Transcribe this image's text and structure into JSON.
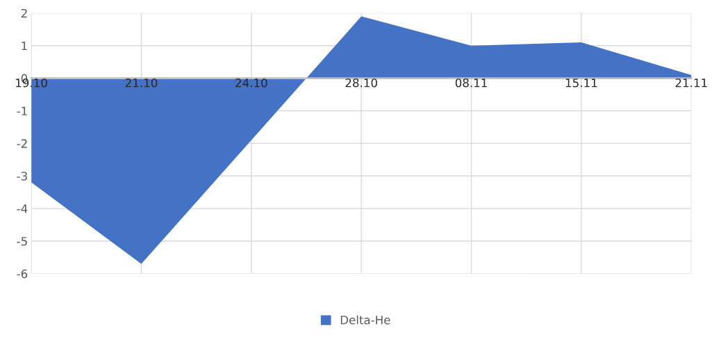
{
  "chart_data": {
    "type": "area",
    "categories": [
      "19.10",
      "21.10",
      "24.10",
      "28.10",
      "08.11",
      "15.11",
      "21.11"
    ],
    "series": [
      {
        "name": "Delta-He",
        "color": "#4472c4",
        "values": [
          -3.2,
          -5.7,
          -1.9,
          1.9,
          1.0,
          1.1,
          0.1
        ]
      }
    ],
    "ylim": [
      -6,
      2
    ],
    "yticks": [
      -6,
      -5,
      -4,
      -3,
      -2,
      -1,
      0,
      1,
      2
    ],
    "grid": true,
    "legend": "bottom"
  }
}
